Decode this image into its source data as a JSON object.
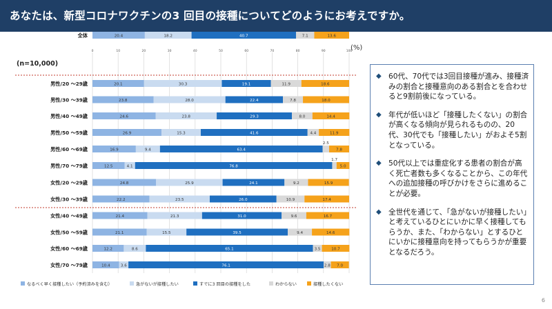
{
  "title": "あなたは、新型コロナワクチンの3 回目の接種についてどのようにお考えですか。",
  "page_number": "6",
  "notes": [
    "60代、70代では3回目接種が進み、接種済みの割合と接種意向のある割合とを合わせると9割前後になっている。",
    "年代が低いほど「接種したくない」の割合が高くなる傾向が見られるものの、20代、30代でも「接種したい」がおよそ5割となっている。",
    "50代以上では重症化する患者の割合が高く死亡者数も多くなることから、この年代への追加接種の呼びかけをさらに進めることが必要。",
    "全世代を通じて、「急がないが接種したい」と考えているひとにいかに早く接種してもらうか、また、「わからない」とするひとにいかに接種意向を持ってもらうかが重要となるだろう。"
  ],
  "chart_data": {
    "type": "bar",
    "orientation": "horizontal",
    "stacked": true,
    "sample_label": "(n=10,000)",
    "unit_label": "(%)",
    "xlim": [
      0,
      100
    ],
    "xticks": [
      "0",
      "10",
      "20",
      "30",
      "40",
      "50",
      "60",
      "70",
      "80",
      "90",
      "100"
    ],
    "categories": [
      "全体",
      "男性/20 ～29歳",
      "男性/30 ～39歳",
      "男性/40 ～49歳",
      "男性/50 ～59歳",
      "男性/60 ～69歳",
      "男性/70 ～79歳",
      "女性/20 ～29歳",
      "女性/30 ～39歳",
      "女性/40 ～49歳",
      "女性/50 ～59歳",
      "女性/60 ～69歳",
      "女性/70 ～79歳"
    ],
    "series": [
      {
        "name": "なるべく早く接種したい（予約済みを含む）",
        "color": "#8eb4e3",
        "values": [
          20.4,
          20.1,
          23.8,
          24.6,
          26.9,
          16.9,
          12.5,
          24.8,
          22.2,
          21.4,
          21.1,
          12.2,
          10.4
        ]
      },
      {
        "name": "急がないが接種したい",
        "color": "#c9dbf0",
        "values": [
          18.2,
          30.3,
          28.0,
          23.8,
          15.3,
          9.4,
          4.1,
          25.9,
          23.5,
          21.3,
          15.5,
          8.6,
          3.6
        ]
      },
      {
        "name": "すでに3 回目の接種をした",
        "color": "#1f6fc0",
        "values": [
          40.7,
          19.1,
          22.4,
          29.3,
          41.6,
          63.4,
          76.8,
          24.1,
          26.0,
          31.0,
          39.5,
          65.1,
          76.1
        ]
      },
      {
        "name": "わからない",
        "color": "#d9d9d9",
        "values": [
          7.1,
          11.9,
          7.8,
          8.0,
          4.4,
          2.5,
          1.7,
          9.2,
          10.9,
          9.6,
          9.4,
          3.5,
          2.8
        ]
      },
      {
        "name": "接種したくない",
        "color": "#f5a21b",
        "values": [
          13.6,
          18.6,
          18.0,
          14.4,
          11.9,
          7.8,
          5.0,
          15.9,
          17.4,
          16.7,
          14.6,
          10.7,
          7.0
        ]
      }
    ]
  }
}
